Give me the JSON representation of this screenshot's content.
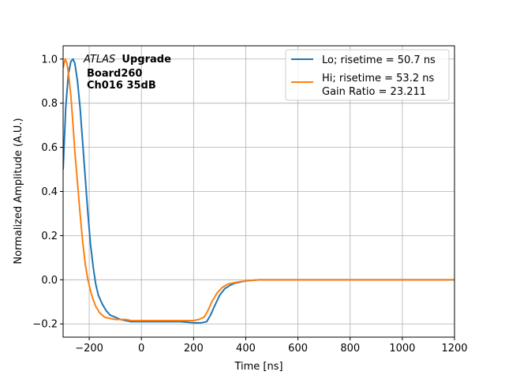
{
  "chart_data": {
    "type": "line",
    "xlabel": "Time [ns]",
    "ylabel": "Normalized Amplitude (A.U.)",
    "xlim": [
      -300,
      1200
    ],
    "ylim": [
      -0.26,
      1.06
    ],
    "xticks": [
      -200,
      0,
      200,
      400,
      600,
      800,
      1000,
      1200
    ],
    "yticks": [
      -0.2,
      0.0,
      0.2,
      0.4,
      0.6,
      0.8,
      1.0
    ],
    "xtick_labels": [
      "−200",
      "0",
      "200",
      "400",
      "600",
      "800",
      "1000",
      "1200"
    ],
    "ytick_labels": [
      "−0.2",
      "0.0",
      "0.2",
      "0.4",
      "0.6",
      "0.8",
      "1.0"
    ],
    "grid": true,
    "legend_position": "top-right",
    "annotation": {
      "line1_italic": "ATLAS",
      "line1_bold": "Upgrade",
      "line2": "Board260",
      "line3": "Ch016 35dB"
    },
    "series": [
      {
        "name": "Lo; risetime = 50.7 ns",
        "color": "#1f77b4",
        "x": [
          -300,
          -290,
          -280,
          -270,
          -262,
          -255,
          -245,
          -235,
          -225,
          -215,
          -205,
          -195,
          -185,
          -175,
          -165,
          -150,
          -135,
          -120,
          -100,
          -80,
          -60,
          -40,
          -20,
          0,
          50,
          100,
          150,
          200,
          230,
          250,
          265,
          280,
          300,
          320,
          340,
          360,
          380,
          400,
          450,
          500,
          600,
          700,
          800,
          900,
          1000,
          1100,
          1200
        ],
        "y": [
          0.5,
          0.78,
          0.93,
          0.99,
          1.0,
          0.98,
          0.9,
          0.78,
          0.62,
          0.46,
          0.3,
          0.16,
          0.06,
          -0.02,
          -0.07,
          -0.11,
          -0.14,
          -0.16,
          -0.17,
          -0.18,
          -0.185,
          -0.19,
          -0.19,
          -0.19,
          -0.19,
          -0.19,
          -0.19,
          -0.195,
          -0.195,
          -0.19,
          -0.16,
          -0.12,
          -0.07,
          -0.04,
          -0.025,
          -0.015,
          -0.01,
          -0.005,
          0.0,
          0.0,
          0.0,
          0.0,
          0.0,
          0.0,
          0.0,
          0.0,
          0.0
        ]
      },
      {
        "name": "Hi; risetime = 53.2 ns",
        "name2": "Gain Ratio = 23.211",
        "color": "#ff7f0e",
        "x": [
          -300,
          -292,
          -285,
          -278,
          -270,
          -262,
          -255,
          -245,
          -235,
          -225,
          -215,
          -205,
          -195,
          -185,
          -175,
          -160,
          -140,
          -120,
          -100,
          -80,
          -60,
          -40,
          -20,
          0,
          50,
          100,
          150,
          200,
          220,
          240,
          255,
          270,
          290,
          310,
          330,
          350,
          370,
          400,
          450,
          500,
          600,
          700,
          800,
          900,
          1000,
          1100,
          1200
        ],
        "y": [
          0.96,
          1.0,
          0.98,
          0.92,
          0.83,
          0.7,
          0.58,
          0.44,
          0.3,
          0.17,
          0.07,
          0.0,
          -0.05,
          -0.09,
          -0.12,
          -0.15,
          -0.17,
          -0.175,
          -0.18,
          -0.18,
          -0.18,
          -0.185,
          -0.185,
          -0.185,
          -0.185,
          -0.185,
          -0.185,
          -0.185,
          -0.18,
          -0.17,
          -0.14,
          -0.1,
          -0.06,
          -0.035,
          -0.02,
          -0.015,
          -0.01,
          -0.005,
          0.0,
          0.0,
          0.0,
          0.0,
          0.0,
          0.0,
          0.0,
          0.0,
          0.0
        ]
      }
    ]
  }
}
